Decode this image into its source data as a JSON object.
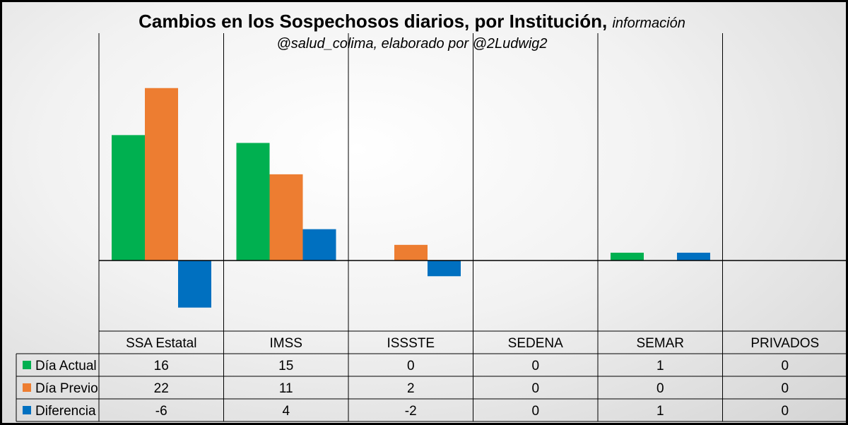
{
  "chart_data": {
    "type": "bar",
    "title": "Cambios en los Sospechosos diarios, por Institución,",
    "title_note": "información",
    "subtitle": "@salud_colima, elaborado por @2Ludwig2",
    "categories": [
      "SSA Estatal",
      "IMSS",
      "ISSSTE",
      "SEDENA",
      "SEMAR",
      "PRIVADOS"
    ],
    "series": [
      {
        "name": "Día Actual",
        "values": [
          16,
          15,
          0,
          0,
          1,
          0
        ],
        "color": "#00b050"
      },
      {
        "name": "Día Previo",
        "values": [
          22,
          11,
          2,
          0,
          0,
          0
        ],
        "color": "#ed7d31"
      },
      {
        "name": "Diferencia",
        "values": [
          -6,
          4,
          -2,
          0,
          1,
          0
        ],
        "color": "#0070c0"
      }
    ],
    "ylim": [
      -9,
      29
    ],
    "legend": "data-table"
  }
}
